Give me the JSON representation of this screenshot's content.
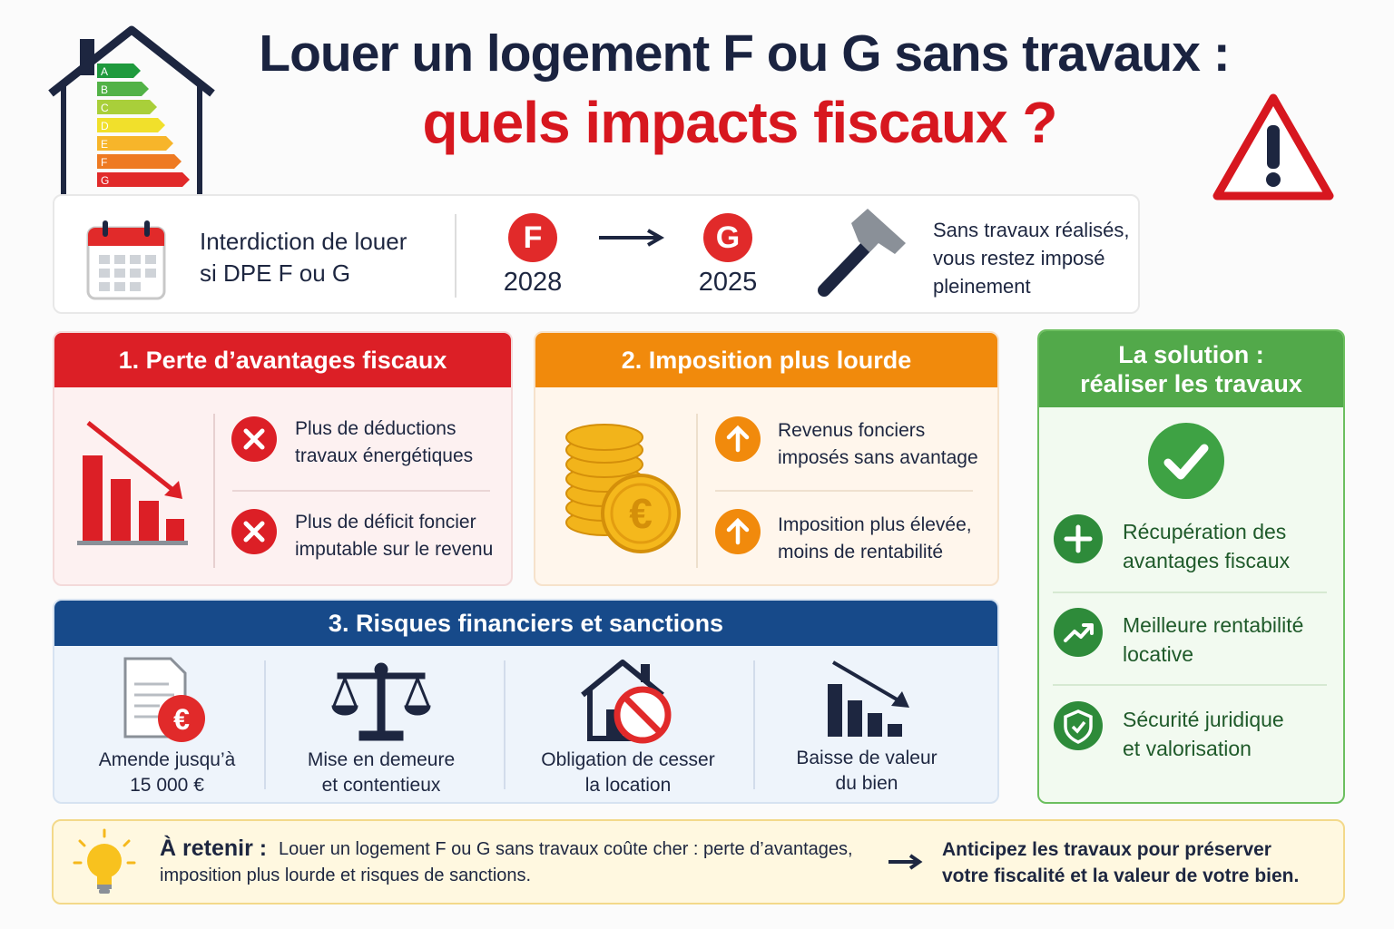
{
  "header": {
    "title": "Louer un logement F ou G sans travaux :",
    "subtitle": "quels impacts fiscaux ?",
    "energy_labels": [
      "A",
      "B",
      "C",
      "D",
      "E",
      "F",
      "G"
    ]
  },
  "banner": {
    "ban": [
      "Interdiction de louer",
      "si DPE F ou G"
    ],
    "steps": [
      {
        "class": "F",
        "year": "2028"
      },
      {
        "class": "G",
        "year": "2025"
      }
    ],
    "note": [
      "Sans travaux réalisés,",
      "vous restez imposé",
      "pleinement"
    ]
  },
  "sections": [
    {
      "title": "1. Perte d’avantages fiscaux",
      "items": [
        [
          "Plus de déductions",
          "travaux énergétiques"
        ],
        [
          "Plus de déficit foncier",
          "imputable sur le revenu"
        ]
      ]
    },
    {
      "title": "2. Imposition plus lourde",
      "items": [
        [
          "Revenus fonciers",
          "imposés sans avantage"
        ],
        [
          "Imposition plus élevée,",
          "moins de rentabilité"
        ]
      ]
    },
    {
      "title": "3. Risques financiers et sanctions",
      "items": [
        [
          "Amende jusqu’à",
          "15 000 €"
        ],
        [
          "Mise en demeure",
          "et contentieux"
        ],
        [
          "Obligation de cesser",
          "la location"
        ],
        [
          "Baisse de valeur",
          "du bien"
        ]
      ]
    }
  ],
  "solution": {
    "title": [
      "La solution :",
      "réaliser les travaux"
    ],
    "items": [
      [
        "Récupération des",
        "avantages fiscaux"
      ],
      [
        "Meilleure rentabilité",
        "locative"
      ],
      [
        "Sécurité juridique",
        "et valorisation"
      ]
    ]
  },
  "footer": {
    "label": "À retenir :",
    "text": [
      "Louer un logement F ou G sans travaux coûte cher : perte d’avantages,",
      "imposition plus lourde et risques de sanctions."
    ],
    "action": [
      "Anticipez les travaux pour préserver",
      "votre fiscalité et la valeur de votre bien."
    ]
  },
  "currency_symbol": "€"
}
